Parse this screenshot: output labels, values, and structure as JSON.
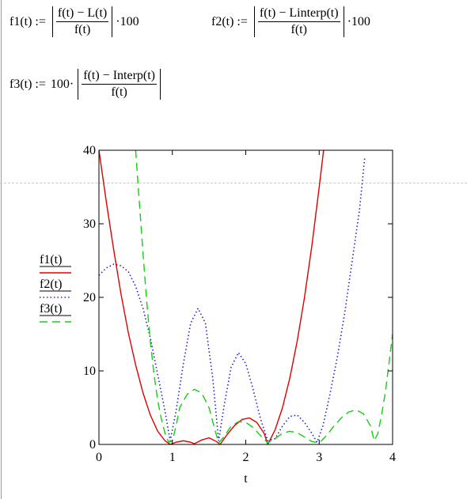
{
  "equations": {
    "f1": {
      "lhs": "f1(t) :=",
      "num": "f(t) − L(t)",
      "den": "f(t)",
      "suffix": "·100"
    },
    "f2": {
      "lhs": "f2(t) :=",
      "num": "f(t) − Linterp(t)",
      "den": "f(t)",
      "suffix": "·100"
    },
    "f3": {
      "lhs": "f3(t) :=",
      "prefix": "100·",
      "num": "f(t) − Interp(t)",
      "den": "f(t)"
    }
  },
  "chart_data": {
    "type": "line",
    "xlabel": "t",
    "xlim": [
      0,
      4
    ],
    "ylim": [
      0,
      40
    ],
    "xticks": [
      0,
      1,
      2,
      3,
      4
    ],
    "yticks": [
      0,
      10,
      20,
      30,
      40
    ],
    "grid": false,
    "legend_position": "left-outside",
    "series": [
      {
        "name": "f1(t)",
        "color": "#e00000",
        "dash": "solid",
        "points": [
          [
            0,
            40
          ],
          [
            0.1,
            33
          ],
          [
            0.2,
            26.5
          ],
          [
            0.3,
            20.5
          ],
          [
            0.4,
            15.2
          ],
          [
            0.5,
            10.8
          ],
          [
            0.6,
            7
          ],
          [
            0.7,
            4
          ],
          [
            0.8,
            1.8
          ],
          [
            0.9,
            0.5
          ],
          [
            0.97,
            0
          ],
          [
            1.05,
            0.3
          ],
          [
            1.15,
            0.5
          ],
          [
            1.25,
            0.3
          ],
          [
            1.3,
            0.1
          ],
          [
            1.4,
            0.6
          ],
          [
            1.5,
            0.9
          ],
          [
            1.6,
            0.4
          ],
          [
            1.65,
            0
          ],
          [
            1.75,
            1.4
          ],
          [
            1.85,
            2.6
          ],
          [
            1.95,
            3.4
          ],
          [
            2.05,
            3.6
          ],
          [
            2.15,
            3
          ],
          [
            2.25,
            1.5
          ],
          [
            2.3,
            0
          ],
          [
            2.4,
            2
          ],
          [
            2.5,
            5
          ],
          [
            2.6,
            9
          ],
          [
            2.7,
            14
          ],
          [
            2.8,
            20
          ],
          [
            2.9,
            27
          ],
          [
            3,
            35
          ],
          [
            3.06,
            40
          ]
        ]
      },
      {
        "name": "f2(t)",
        "color": "#2020d0",
        "dash": "dotted",
        "points": [
          [
            0,
            23
          ],
          [
            0.1,
            24
          ],
          [
            0.2,
            24.5
          ],
          [
            0.3,
            24.3
          ],
          [
            0.4,
            23.5
          ],
          [
            0.5,
            21.5
          ],
          [
            0.6,
            18.5
          ],
          [
            0.7,
            14.5
          ],
          [
            0.8,
            9.5
          ],
          [
            0.9,
            4.5
          ],
          [
            0.97,
            0.5
          ],
          [
            1.05,
            4.5
          ],
          [
            1.15,
            11
          ],
          [
            1.25,
            16.5
          ],
          [
            1.35,
            18.5
          ],
          [
            1.45,
            16.5
          ],
          [
            1.55,
            9
          ],
          [
            1.63,
            0.5
          ],
          [
            1.7,
            5
          ],
          [
            1.8,
            10.5
          ],
          [
            1.9,
            12.5
          ],
          [
            2,
            11
          ],
          [
            2.1,
            7.5
          ],
          [
            2.2,
            3.5
          ],
          [
            2.3,
            0.5
          ],
          [
            2.4,
            0.8
          ],
          [
            2.5,
            2.5
          ],
          [
            2.6,
            3.8
          ],
          [
            2.7,
            4
          ],
          [
            2.8,
            3
          ],
          [
            2.9,
            1.5
          ],
          [
            2.97,
            0.3
          ],
          [
            3.05,
            2.5
          ],
          [
            3.15,
            7
          ],
          [
            3.25,
            12
          ],
          [
            3.35,
            18
          ],
          [
            3.45,
            25
          ],
          [
            3.55,
            32
          ],
          [
            3.62,
            39
          ]
        ]
      },
      {
        "name": "f3(t)",
        "color": "#10d010",
        "dash": "dashed",
        "points": [
          [
            0.5,
            40
          ],
          [
            0.55,
            33
          ],
          [
            0.6,
            26
          ],
          [
            0.65,
            19.5
          ],
          [
            0.7,
            14
          ],
          [
            0.75,
            9.5
          ],
          [
            0.8,
            6
          ],
          [
            0.85,
            3.5
          ],
          [
            0.9,
            1.5
          ],
          [
            0.95,
            0.3
          ],
          [
            1,
            0.5
          ],
          [
            1.05,
            2.5
          ],
          [
            1.1,
            5
          ],
          [
            1.2,
            6.8
          ],
          [
            1.3,
            7.5
          ],
          [
            1.4,
            7
          ],
          [
            1.5,
            5
          ],
          [
            1.58,
            2
          ],
          [
            1.63,
            0.2
          ],
          [
            1.7,
            1
          ],
          [
            1.8,
            2.5
          ],
          [
            1.9,
            3.1
          ],
          [
            2,
            3
          ],
          [
            2.1,
            2.3
          ],
          [
            2.2,
            1.2
          ],
          [
            2.3,
            0.2
          ],
          [
            2.4,
            0.8
          ],
          [
            2.5,
            1.5
          ],
          [
            2.6,
            1.8
          ],
          [
            2.7,
            1.6
          ],
          [
            2.8,
            1
          ],
          [
            2.9,
            0.4
          ],
          [
            3,
            0.2
          ],
          [
            3.1,
            1.2
          ],
          [
            3.2,
            2.5
          ],
          [
            3.3,
            3.6
          ],
          [
            3.4,
            4.4
          ],
          [
            3.5,
            4.7
          ],
          [
            3.6,
            4.2
          ],
          [
            3.7,
            2.5
          ],
          [
            3.75,
            0.5
          ],
          [
            3.8,
            1.5
          ],
          [
            3.85,
            4
          ],
          [
            3.9,
            7
          ],
          [
            3.95,
            11
          ],
          [
            4,
            15
          ]
        ]
      }
    ]
  }
}
